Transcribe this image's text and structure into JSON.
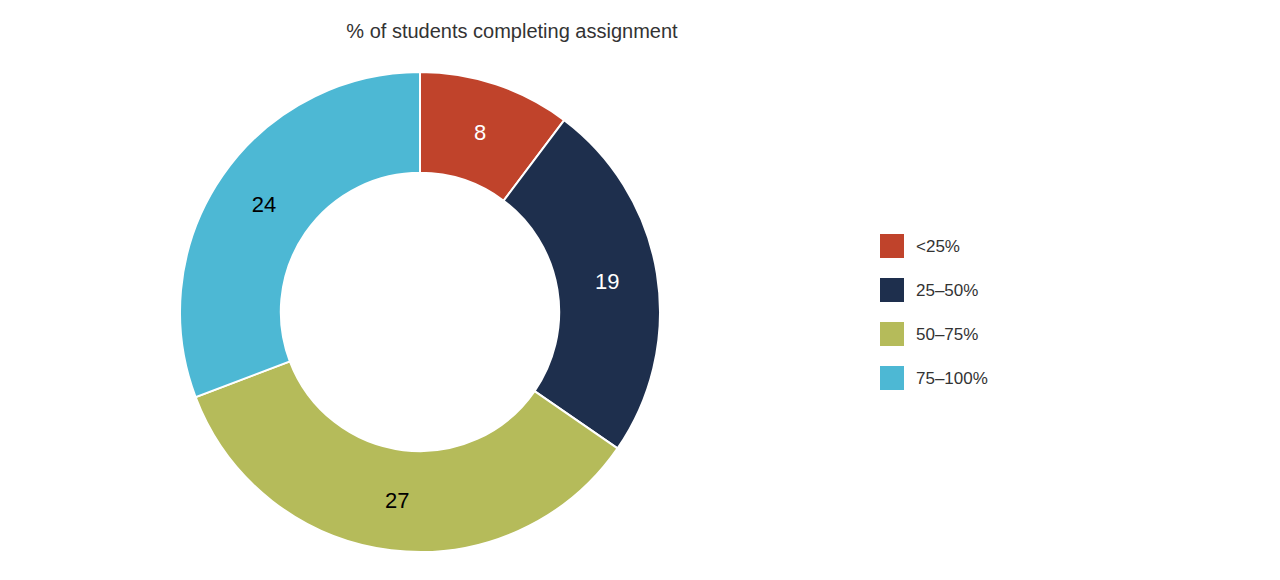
{
  "chart_data": {
    "type": "donut",
    "title": "% of students completing assignment",
    "categories": [
      "<25%",
      "25–50%",
      "50–75%",
      "75–100%"
    ],
    "values": [
      8,
      19,
      27,
      24
    ],
    "colors": [
      "#c0432b",
      "#1e2f4d",
      "#b5bb5a",
      "#4db8d4"
    ],
    "data_labels": true,
    "legend": "right"
  }
}
